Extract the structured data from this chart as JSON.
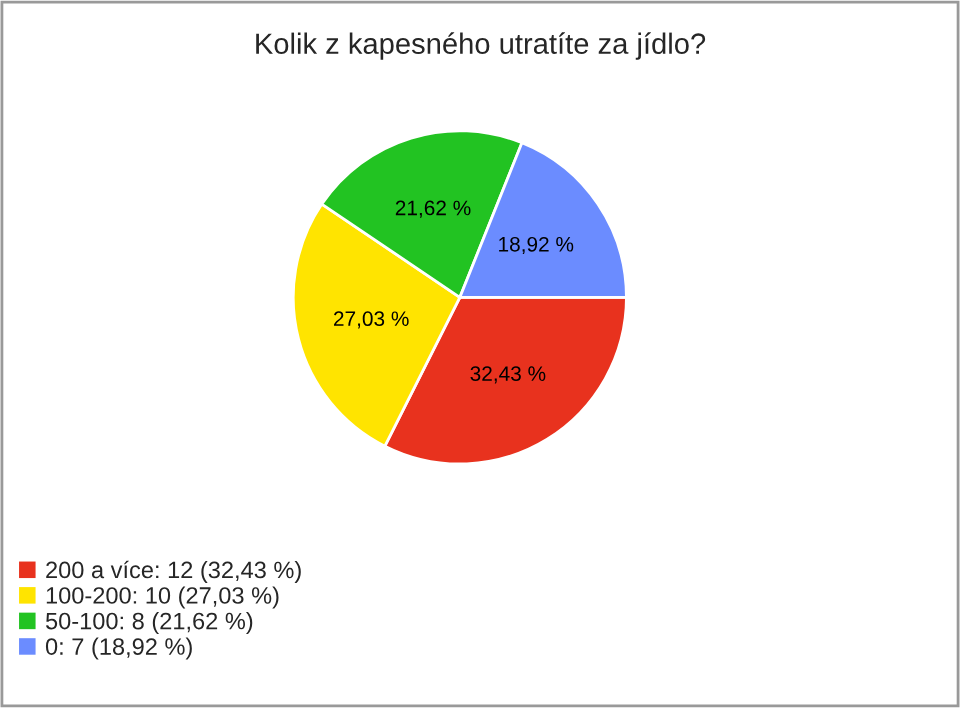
{
  "chart_data": {
    "type": "pie",
    "title": "Kolik z kapesného utratíte za jídlo?",
    "categories": [
      "200 a více: 12 (32,43 %)",
      "100-200: 10 (27,03 %)",
      "50-100: 8 (21,62 %)",
      "0: 7 (18,92 %)"
    ],
    "values": [
      32.43,
      27.03,
      21.62,
      18.92
    ],
    "value_labels": [
      "32,43 %",
      "27,03 %",
      "21,62 %",
      "18,92 %"
    ],
    "colors": [
      "#e8321e",
      "#ffe400",
      "#22c322",
      "#6b8cff"
    ],
    "legend": "bottom left"
  }
}
